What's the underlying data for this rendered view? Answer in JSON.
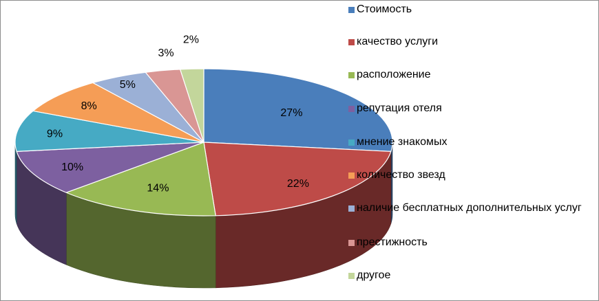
{
  "chart_data": {
    "type": "pie",
    "style": "3d",
    "title": "",
    "legend_position": "right",
    "labels": [
      "Стоимость",
      "качество услуги",
      "расположение",
      "репутация отеля",
      "мнение знакомых",
      "количество звезд",
      "наличие бесплатных дополнительных услуг",
      "престижность",
      "другое"
    ],
    "values": [
      27,
      22,
      14,
      10,
      9,
      8,
      5,
      3,
      2
    ],
    "value_labels": [
      "27%",
      "22%",
      "14%",
      "10%",
      "9%",
      "8%",
      "5%",
      "3%",
      "2%"
    ],
    "colors": [
      "#4a7ebb",
      "#be4b48",
      "#98b954",
      "#7d60a0",
      "#46aac4",
      "#f59d56",
      "#9bb0d6",
      "#d99694",
      "#c3d69b"
    ]
  }
}
